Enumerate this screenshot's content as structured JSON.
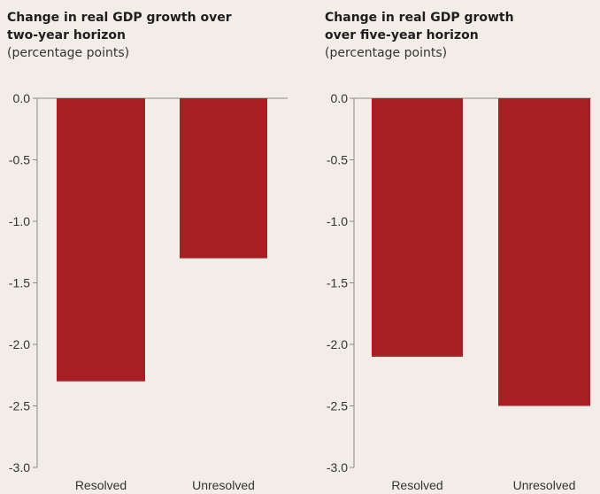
{
  "colors": {
    "bar": "#a81e23",
    "axis": "#8a8a8a",
    "background": "#f3ede7"
  },
  "chart_data": [
    {
      "type": "bar",
      "title_lines": [
        "Change in real GDP growth over",
        "two-year horizon"
      ],
      "subtitle": "(percentage points)",
      "categories": [
        "Resolved",
        "Unresolved"
      ],
      "values": [
        -2.3,
        -1.3
      ],
      "ylim": [
        -3.0,
        0.0
      ],
      "yticks": [
        "0.0",
        "-0.5",
        "-1.0",
        "-1.5",
        "-2.0",
        "-2.5",
        "-3.0"
      ],
      "grid": false
    },
    {
      "type": "bar",
      "title_lines": [
        "Change in real GDP growth",
        "over five-year horizon"
      ],
      "subtitle": "(percentage points)",
      "categories": [
        "Resolved",
        "Unresolved"
      ],
      "values": [
        -2.1,
        -2.5
      ],
      "ylim": [
        -3.0,
        0.0
      ],
      "yticks": [
        "0.0",
        "-0.5",
        "-1.0",
        "-1.5",
        "-2.0",
        "-2.5",
        "-3.0"
      ],
      "grid": false
    }
  ]
}
